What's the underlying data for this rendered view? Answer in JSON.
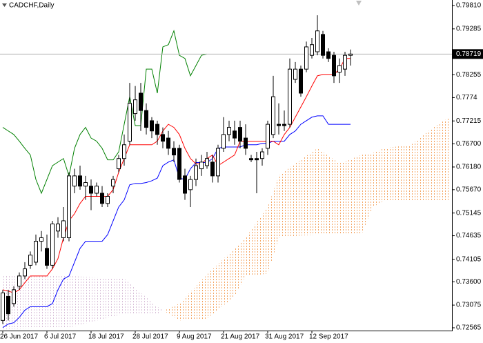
{
  "chart_data": {
    "type": "candlestick",
    "title": "CADCHF,Daily",
    "categories": [
      "26 Jun 2017",
      null,
      null,
      null,
      null,
      null,
      null,
      null,
      "6 Jul 2017",
      null,
      null,
      null,
      null,
      null,
      null,
      null,
      "18 Jul 2017",
      null,
      null,
      null,
      null,
      null,
      null,
      null,
      "28 Jul 2017",
      null,
      null,
      null,
      null,
      null,
      null,
      null,
      "9 Aug 2017",
      null,
      null,
      null,
      null,
      null,
      null,
      null,
      "21 Aug 2017",
      null,
      null,
      null,
      null,
      null,
      null,
      null,
      "31 Aug 2017",
      null,
      null,
      null,
      null,
      null,
      null,
      null,
      "12 Sep 2017",
      null,
      null,
      null,
      null,
      null,
      null,
      null
    ],
    "open": [
      0.7273,
      0.7327,
      0.7311,
      0.735,
      0.7373,
      0.7397,
      0.7404,
      0.7451,
      0.7435,
      0.7397,
      0.7474,
      0.7459,
      0.7459,
      0.7575,
      0.7598,
      0.7575,
      0.7575,
      0.7559,
      0.7559,
      0.7536,
      0.7575,
      0.7614,
      0.7637,
      0.7676,
      0.7738,
      0.7784,
      0.7745,
      0.7722,
      0.7714,
      0.7691,
      0.7683,
      0.766,
      0.766,
      0.7598,
      0.7567,
      0.759,
      0.7614,
      0.7621,
      0.7629,
      0.7598,
      0.766,
      0.7691,
      0.7699,
      0.7707,
      0.7683,
      0.7637,
      0.7637,
      0.7637,
      0.766,
      0.7691,
      0.7714,
      0.7714,
      0.7714,
      0.7815,
      0.7838,
      0.7838,
      0.7869,
      0.7877,
      0.7916,
      0.7877,
      0.7869,
      0.7831,
      0.7838,
      0.7869
    ],
    "high": [
      0.7342,
      0.7342,
      0.735,
      0.7381,
      0.7404,
      0.7428,
      0.7466,
      0.7474,
      0.7466,
      0.7497,
      0.7505,
      0.7528,
      0.7606,
      0.7614,
      0.7621,
      0.7598,
      0.759,
      0.7583,
      0.7575,
      0.7559,
      0.7598,
      0.7645,
      0.7691,
      0.7807,
      0.78,
      0.7807,
      0.7761,
      0.773,
      0.7722,
      0.7707,
      0.7699,
      0.7676,
      0.7668,
      0.7614,
      0.7598,
      0.7637,
      0.7645,
      0.7652,
      0.7645,
      0.7668,
      0.773,
      0.7722,
      0.7722,
      0.7722,
      0.7714,
      0.7645,
      0.7652,
      0.766,
      0.7722,
      0.7823,
      0.7761,
      0.7745,
      0.7862,
      0.7854,
      0.7846,
      0.79,
      0.7908,
      0.7959,
      0.7924,
      0.7885,
      0.7877,
      0.7862,
      0.7877,
      0.7882
    ],
    "low": [
      0.7265,
      0.7273,
      0.7304,
      0.7342,
      0.7366,
      0.7389,
      0.7397,
      0.7428,
      0.7389,
      0.7389,
      0.7459,
      0.7451,
      0.7451,
      0.7559,
      0.7567,
      0.7544,
      0.7521,
      0.7552,
      0.7528,
      0.7528,
      0.7559,
      0.7606,
      0.7621,
      0.7668,
      0.7722,
      0.7699,
      0.7691,
      0.7683,
      0.7668,
      0.766,
      0.7645,
      0.7629,
      0.7583,
      0.7544,
      0.7528,
      0.7575,
      0.7598,
      0.7614,
      0.7583,
      0.7583,
      0.7652,
      0.7676,
      0.7668,
      0.766,
      0.7645,
      0.7629,
      0.7559,
      0.7621,
      0.7645,
      0.7683,
      0.7691,
      0.7699,
      0.7707,
      0.7807,
      0.7776,
      0.7831,
      0.7862,
      0.7869,
      0.7862,
      0.7854,
      0.7807,
      0.7807,
      0.7823,
      0.7846
    ],
    "close": [
      0.7335,
      0.7288,
      0.7342,
      0.7373,
      0.7389,
      0.742,
      0.7451,
      0.7459,
      0.7397,
      0.749,
      0.749,
      0.7497,
      0.7598,
      0.7598,
      0.7575,
      0.7583,
      0.7559,
      0.7575,
      0.7536,
      0.7552,
      0.759,
      0.7637,
      0.7668,
      0.7761,
      0.7769,
      0.7745,
      0.7707,
      0.7699,
      0.7691,
      0.7676,
      0.766,
      0.7645,
      0.759,
      0.7559,
      0.759,
      0.7621,
      0.7629,
      0.7637,
      0.7598,
      0.766,
      0.7691,
      0.7707,
      0.7683,
      0.7676,
      0.766,
      0.7634,
      0.7634,
      0.7652,
      0.7714,
      0.7776,
      0.7711,
      0.7711,
      0.7838,
      0.7838,
      0.7784,
      0.7888,
      0.7893,
      0.7924,
      0.7869,
      0.7862,
      0.7823,
      0.7846,
      0.7869,
      0.78719
    ],
    "up_color": "#ffffff",
    "down_color": "#000000",
    "outline_color": "#000000",
    "tenkan": {
      "color": "#ff0000",
      "values": [
        0.7342,
        0.7339,
        0.7335,
        0.7342,
        0.7358,
        0.7373,
        0.7373,
        0.7373,
        0.7373,
        0.7389,
        0.7412,
        0.7459,
        0.7497,
        0.7513,
        0.7536,
        0.7552,
        0.7552,
        0.7552,
        0.7552,
        0.7552,
        0.7567,
        0.7606,
        0.7637,
        0.7668,
        0.7668,
        0.7668,
        0.7668,
        0.7668,
        0.7676,
        0.7699,
        0.7714,
        0.7707,
        0.7691,
        0.766,
        0.7637,
        0.7625,
        0.7625,
        0.7637,
        0.7645,
        0.7621,
        0.7629,
        0.7637,
        0.7645,
        0.7676,
        0.7676,
        0.7676,
        0.7676,
        0.7676,
        0.7676,
        0.7676,
        0.7668,
        0.7691,
        0.7707,
        0.773,
        0.7753,
        0.7776,
        0.78,
        0.7823,
        0.7826,
        0.7826,
        0.7826,
        0.7838,
        0.7862,
        0.7862
      ]
    },
    "kijun": {
      "color": "#0000ff",
      "values": [
        0.7257,
        0.7265,
        0.7268,
        0.728,
        0.7296,
        0.7304,
        0.7304,
        0.7304,
        0.7304,
        0.7311,
        0.7342,
        0.7366,
        0.7373,
        0.7404,
        0.7435,
        0.7451,
        0.7451,
        0.7451,
        0.7451,
        0.7466,
        0.7497,
        0.7528,
        0.7544,
        0.7578,
        0.7581,
        0.7581,
        0.7583,
        0.7587,
        0.7593,
        0.7621,
        0.7629,
        0.7634,
        0.7593,
        0.759,
        0.7614,
        0.7628,
        0.7628,
        0.7628,
        0.7637,
        0.766,
        0.7663,
        0.7663,
        0.7663,
        0.7663,
        0.7668,
        0.7668,
        0.7668,
        0.7671,
        0.7671,
        0.7676,
        0.7676,
        0.7676,
        0.7691,
        0.7699,
        0.7714,
        0.7722,
        0.773,
        0.7733,
        0.7733,
        0.7714,
        0.7714,
        0.7714,
        0.7714,
        0.7714
      ]
    },
    "chikou": {
      "color": "#008000",
      "values": [
        0.7707,
        0.7699,
        0.7691,
        0.7676,
        0.766,
        0.7645,
        0.759,
        0.7559,
        0.759,
        0.7621,
        0.7629,
        0.7637,
        0.7598,
        0.766,
        0.7691,
        0.7707,
        0.7683,
        0.7676,
        0.766,
        0.7634,
        0.7634,
        0.7652,
        0.7714,
        0.7776,
        0.7711,
        0.7711,
        0.7838,
        0.7838,
        0.7784,
        0.7888,
        0.7893,
        0.7924,
        0.7869,
        0.7862,
        0.7823,
        0.7846,
        0.7869,
        0.78719,
        null,
        null,
        null,
        null,
        null,
        null,
        null,
        null,
        null,
        null,
        null,
        null,
        null,
        null,
        null,
        null,
        null,
        null,
        null,
        null,
        null,
        null,
        null,
        null,
        null,
        null
      ]
    },
    "cloud": {
      "x": [
        0,
        12,
        22,
        28,
        32,
        37,
        42,
        44,
        48,
        50,
        53,
        57,
        61,
        65,
        67,
        69,
        74,
        78,
        81
      ],
      "span_a": [
        0.7253,
        0.7257,
        0.7288,
        0.7288,
        0.7311,
        0.7376,
        0.7435,
        0.7459,
        0.7528,
        0.7598,
        0.7626,
        0.766,
        0.7626,
        0.7645,
        0.7649,
        0.766,
        0.7668,
        0.7707,
        0.773
      ],
      "span_b": [
        0.7376,
        0.7373,
        0.7367,
        0.7304,
        0.7273,
        0.7277,
        0.7327,
        0.7373,
        0.7378,
        0.7459,
        0.7463,
        0.7466,
        0.7466,
        0.7466,
        0.7528,
        0.7541,
        0.7541,
        0.7541,
        0.7544
      ],
      "up_color": "#f4a460",
      "down_color": "#d8bfd8"
    },
    "current_price": 0.78719,
    "ylim": [
      0.72518,
      0.79934
    ],
    "yticks": [
      {
        "value": 0.7981,
        "label": "0.79810"
      },
      0.79285,
      0.78255,
      0.7774,
      0.77215,
      {
        "value": 0.767,
        "label": "0.76700"
      },
      {
        "value": 0.7618,
        "label": "0.76180"
      },
      {
        "value": 0.7567,
        "label": "0.75670"
      },
      0.75145,
      0.74635,
      0.74105,
      {
        "value": 0.736,
        "label": "0.73600"
      },
      0.73075,
      0.72565
    ]
  }
}
